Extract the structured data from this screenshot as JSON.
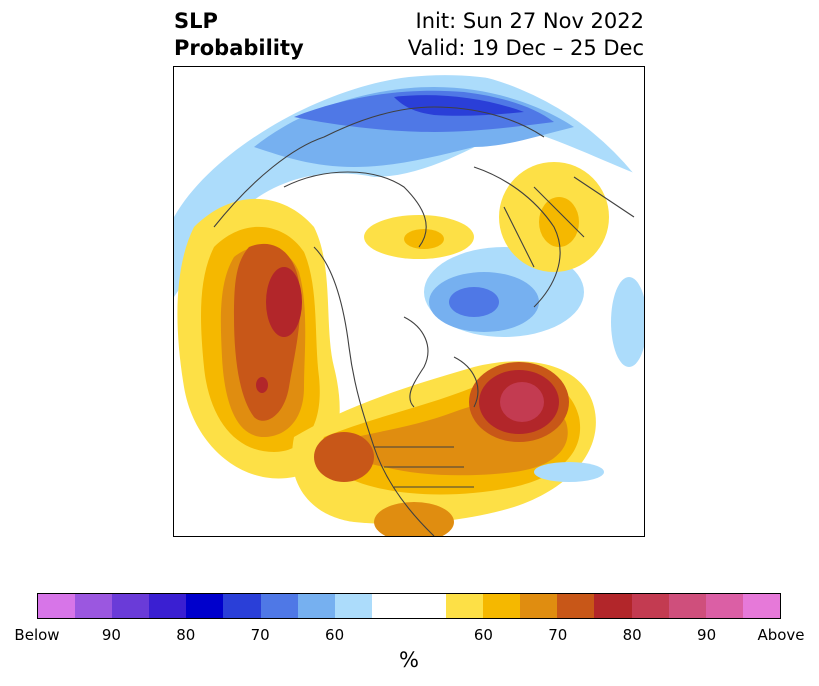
{
  "title": {
    "left_line1": "SLP",
    "left_line2": "Probability",
    "right_line1": "Init: Sun 27 Nov 2022",
    "right_line2": "Valid: 19 Dec – 25 Dec"
  },
  "colorbar": {
    "colors": [
      "#d775e8",
      "#9b57e0",
      "#6a3bd8",
      "#3a1fd2",
      "#0000cc",
      "#2a3fd8",
      "#4f78e6",
      "#76b0f0",
      "#acdcfb",
      "#ffffff",
      "#ffffff",
      "#fde046",
      "#f5b800",
      "#e08d10",
      "#c85718",
      "#b2262a",
      "#c33b51",
      "#cf4f7c",
      "#db5fa5",
      "#e679d9"
    ],
    "labels": [
      "Below",
      "90",
      "80",
      "70",
      "60",
      "60",
      "70",
      "80",
      "90",
      "Above"
    ],
    "unit": "%"
  },
  "map": {
    "projection": "north-polar-stereographic",
    "variable": "SLP probability",
    "features": [
      "Alaska/Bering high (above normal, 70-80%)",
      "North Pacific high (above normal)",
      "North Atlantic high (above normal, >80%)",
      "Arctic/Siberia low (below normal, 60-80%)",
      "Eastern Europe low (below normal)"
    ]
  }
}
